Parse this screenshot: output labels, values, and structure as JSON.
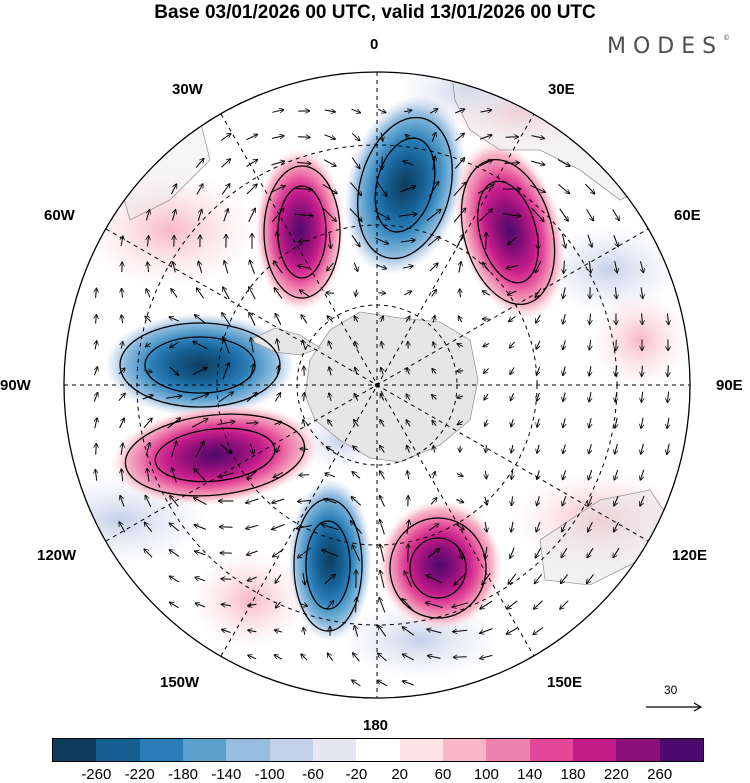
{
  "header": {
    "title": "Base 03/01/2026 00 UTC, valid 13/01/2026 00 UTC",
    "brand": "MODES",
    "brand_mark": "©"
  },
  "map": {
    "projection": "polar stereographic (south pole)",
    "longitude_labels": {
      "top": "0",
      "top_right": "30E",
      "upper_right": "60E",
      "right": "90E",
      "lower_right": "120E",
      "bottom_right": "150E",
      "bottom": "180",
      "bottom_left": "150W",
      "lower_left": "120W",
      "left": "90W",
      "upper_left": "60W",
      "top_left": "30W"
    },
    "reference_vector_label": "30"
  },
  "colorbar": {
    "colors": [
      "#0e3c5c",
      "#155f92",
      "#2b7db8",
      "#5aa0cc",
      "#94bde0",
      "#c3d0e9",
      "#e6e6f3",
      "#ffffff",
      "#fde2e6",
      "#f7b6c8",
      "#ef82ad",
      "#e2479a",
      "#c31c8a",
      "#8a0f78",
      "#4d0a6c"
    ],
    "tick_labels": [
      "-260",
      "-220",
      "-180",
      "-140",
      "-100",
      "-60",
      "-20",
      "20",
      "60",
      "100",
      "140",
      "180",
      "220",
      "260"
    ]
  }
}
